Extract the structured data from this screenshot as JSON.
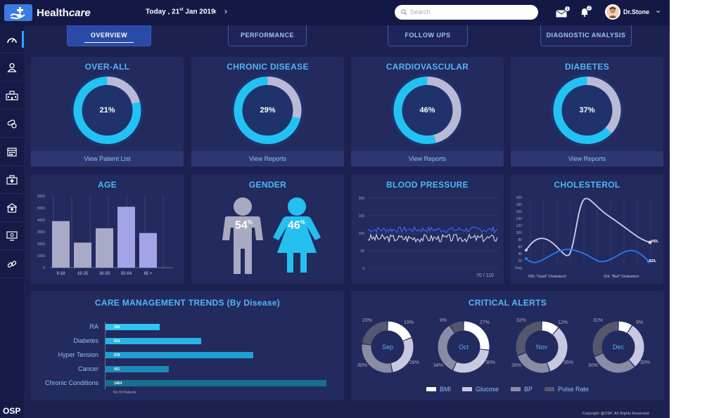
{
  "header": {
    "app_name_regular": "Health",
    "app_name_italic": "care",
    "date_prefix": "Today , 21",
    "date_sup": "st",
    "date_suffix": " Jan 2019",
    "prev": "‹",
    "next": "›",
    "search_placeholder": "Search",
    "mail_badge": "1",
    "notif_badge": "2",
    "username": "Dr.Stone",
    "dropdown": "⌄"
  },
  "sidebar": {
    "items": [
      "dashboard-icon",
      "user-icon",
      "hospital-icon",
      "pills-icon",
      "calendar-icon",
      "medical-bag-icon",
      "clinic-icon",
      "monitor-icon",
      "link-icon"
    ],
    "footer": "OSP"
  },
  "tabs": [
    {
      "label": "OVERVIEW"
    },
    {
      "label": "PERFORMANCE"
    },
    {
      "label": "FOLLOW UPS"
    },
    {
      "label": "DIAGNOSTIC ANALYSIS"
    }
  ],
  "summary_cards": [
    {
      "title": "OVER-ALL",
      "percent": 21,
      "label": "21%",
      "footer": "View Patient List"
    },
    {
      "title": "CHRONIC  DISEASE",
      "percent": 29,
      "label": "29%",
      "footer": "View Reports"
    },
    {
      "title": "CARDIOVASCULAR",
      "percent": 46,
      "label": "46%",
      "footer": "View Reports"
    },
    {
      "title": "DIABETES",
      "percent": 37,
      "label": "37%",
      "footer": "View Reports"
    }
  ],
  "age": {
    "title": "AGE",
    "yticks": [
      "6000",
      "5000",
      "4000",
      "3000",
      "2000",
      "1000",
      "0"
    ],
    "categories": [
      "9-18",
      "19-25",
      "26-50",
      "50-64",
      "65 +"
    ],
    "values": [
      3900,
      2100,
      3300,
      5100,
      2900
    ]
  },
  "gender": {
    "title": "GENDER",
    "male_value": "54",
    "female_value": "46",
    "unit": "%"
  },
  "blood_pressure": {
    "title": "BLOOD PRESSURE",
    "yticks": [
      "200",
      "150",
      "100",
      "50",
      "0"
    ],
    "reading": "70 / 110"
  },
  "cholesterol": {
    "title": "CHOLESTEROL",
    "yticks": [
      "200",
      "180",
      "160",
      "140",
      "120",
      "100",
      "80",
      "60",
      "40",
      "20",
      "0mg"
    ],
    "hdl_label": "HDL",
    "sdl_label": "SDL",
    "hdl_caption": "HDL \"Good\" Cholesterol",
    "sdl_caption": "SDL \"Bad\" Cholesterol"
  },
  "care_trends": {
    "title": "CARE MANAGEMENT TRENDS (By Disease)",
    "axis_label": "No Of Patients",
    "max": 1464,
    "items": [
      {
        "label": "RA",
        "value": 358,
        "text": "358",
        "color": "#2ec4f5"
      },
      {
        "label": "Diabetes",
        "value": 634,
        "text": "634",
        "color": "#29b2e8"
      },
      {
        "label": "Hyper Tension",
        "value": 978,
        "text": "978",
        "color": "#1fa0d2"
      },
      {
        "label": "Cancer",
        "value": 421,
        "text": "421",
        "color": "#1b89b5"
      },
      {
        "label": "Chronic Conditions",
        "value": 1464,
        "text": "1464",
        "color": "#17708f"
      }
    ]
  },
  "critical_alerts": {
    "title": "CRITICAL ALERTS",
    "colors": [
      "#ffffff",
      "#c8c9e0",
      "#8a8ca6",
      "#55576e"
    ],
    "legend": [
      "BMI",
      "Glucose",
      "BP",
      "Pulse Rate"
    ],
    "months": [
      {
        "name": "Sep",
        "values": [
          19,
          28,
          30,
          23
        ],
        "labels": [
          "19%",
          "28%",
          "30%",
          "23%"
        ]
      },
      {
        "name": "Oct",
        "values": [
          27,
          30,
          34,
          9
        ],
        "labels": [
          "27%",
          "30%",
          "34%",
          "9%"
        ]
      },
      {
        "name": "Nov",
        "values": [
          12,
          35,
          26,
          32
        ],
        "labels": [
          "12%",
          "35%",
          "26%",
          "32%"
        ]
      },
      {
        "name": "Dec",
        "values": [
          9,
          30,
          30,
          31
        ],
        "labels": [
          "9%",
          "30%",
          "30%",
          "31%"
        ]
      }
    ]
  },
  "copyright": "Copyright @OSP. All Rights Reserved"
}
